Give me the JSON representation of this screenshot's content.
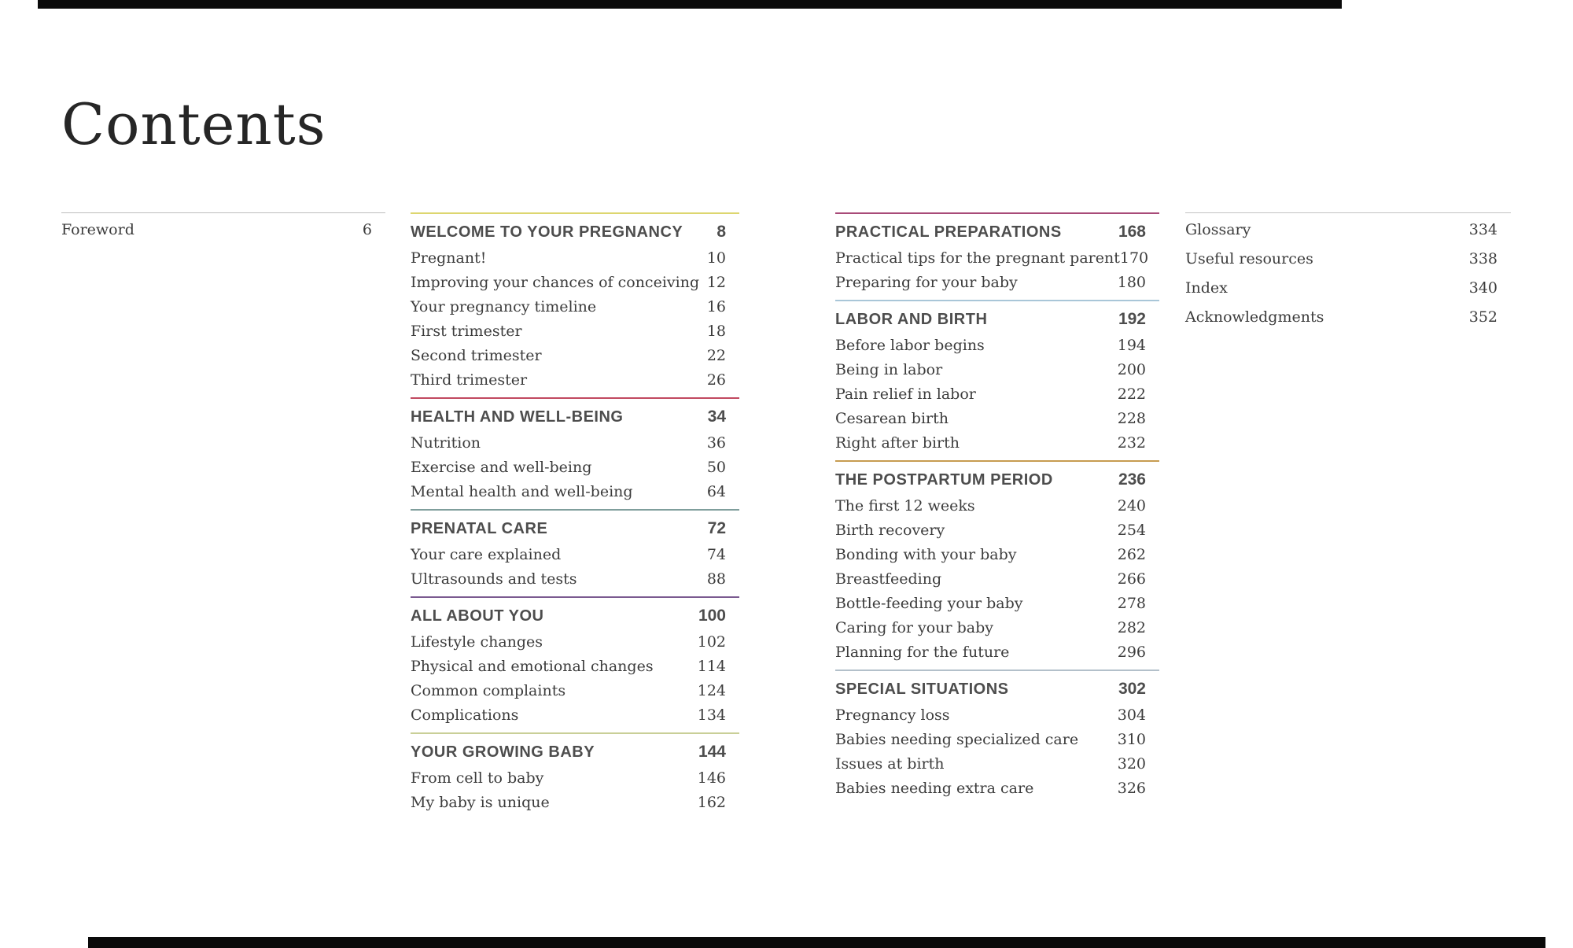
{
  "page": {
    "title": "Contents",
    "background": "#ffffff"
  },
  "foreword": {
    "label": "Foreword",
    "page": "6",
    "rule_color": "#bdbdbd"
  },
  "columns": [
    {
      "sections": [
        {
          "title": "WELCOME TO YOUR PREGNANCY",
          "page": "8",
          "rule_color": "#ddd66f",
          "items": [
            {
              "label": "Pregnant!",
              "page": "10"
            },
            {
              "label": "Improving your chances of conceiving",
              "page": "12"
            },
            {
              "label": "Your pregnancy timeline",
              "page": "16"
            },
            {
              "label": "First trimester",
              "page": "18"
            },
            {
              "label": "Second trimester",
              "page": "22"
            },
            {
              "label": "Third trimester",
              "page": "26"
            }
          ]
        },
        {
          "title": "HEALTH AND WELL-BEING",
          "page": "34",
          "rule_color": "#c14960",
          "items": [
            {
              "label": "Nutrition",
              "page": "36"
            },
            {
              "label": "Exercise and well-being",
              "page": "50"
            },
            {
              "label": "Mental health and well-being",
              "page": "64"
            }
          ]
        },
        {
          "title": "PRENATAL CARE",
          "page": "72",
          "rule_color": "#7f9e9c",
          "items": [
            {
              "label": "Your care explained",
              "page": "74"
            },
            {
              "label": "Ultrasounds and tests",
              "page": "88"
            }
          ]
        },
        {
          "title": "ALL ABOUT YOU",
          "page": "100",
          "rule_color": "#7a5a90",
          "items": [
            {
              "label": "Lifestyle changes",
              "page": "102"
            },
            {
              "label": "Physical and emotional changes",
              "page": "114"
            },
            {
              "label": "Common complaints",
              "page": "124"
            },
            {
              "label": "Complications",
              "page": "134"
            }
          ]
        },
        {
          "title": "YOUR GROWING BABY",
          "page": "144",
          "rule_color": "#c9cf97",
          "items": [
            {
              "label": "From cell to baby",
              "page": "146"
            },
            {
              "label": "My baby is unique",
              "page": "162"
            }
          ]
        }
      ]
    },
    {
      "sections": [
        {
          "title": "PRACTICAL PREPARATIONS",
          "page": "168",
          "rule_color": "#a84a78",
          "items": [
            {
              "label": "Practical tips for the pregnant parent",
              "page": "170"
            },
            {
              "label": "Preparing for your baby",
              "page": "180"
            }
          ]
        },
        {
          "title": "LABOR AND BIRTH",
          "page": "192",
          "rule_color": "#a9c6d8",
          "items": [
            {
              "label": "Before labor begins",
              "page": "194"
            },
            {
              "label": "Being in labor",
              "page": "200"
            },
            {
              "label": "Pain relief in labor",
              "page": "222"
            },
            {
              "label": "Cesarean birth",
              "page": "228"
            },
            {
              "label": "Right after birth",
              "page": "232"
            }
          ]
        },
        {
          "title": "THE POSTPARTUM PERIOD",
          "page": "236",
          "rule_color": "#c79c51",
          "items": [
            {
              "label": "The first 12 weeks",
              "page": "240"
            },
            {
              "label": "Birth recovery",
              "page": "254"
            },
            {
              "label": "Bonding with your baby",
              "page": "262"
            },
            {
              "label": "Breastfeeding",
              "page": "266"
            },
            {
              "label": "Bottle-feeding your baby",
              "page": "278"
            },
            {
              "label": "Caring for your baby",
              "page": "282"
            },
            {
              "label": "Planning for the future",
              "page": "296"
            }
          ]
        },
        {
          "title": "SPECIAL SITUATIONS",
          "page": "302",
          "rule_color": "#b3c0ca",
          "items": [
            {
              "label": "Pregnancy loss",
              "page": "304"
            },
            {
              "label": "Babies needing specialized care",
              "page": "310"
            },
            {
              "label": "Issues at birth",
              "page": "320"
            },
            {
              "label": "Babies needing extra care",
              "page": "326"
            }
          ]
        }
      ]
    }
  ],
  "end_matter": {
    "rule_color": "#c2c2c2",
    "items": [
      {
        "label": "Glossary",
        "page": "334"
      },
      {
        "label": "Useful resources",
        "page": "338"
      },
      {
        "label": "Index",
        "page": "340"
      },
      {
        "label": "Acknowledgments",
        "page": "352"
      }
    ]
  }
}
